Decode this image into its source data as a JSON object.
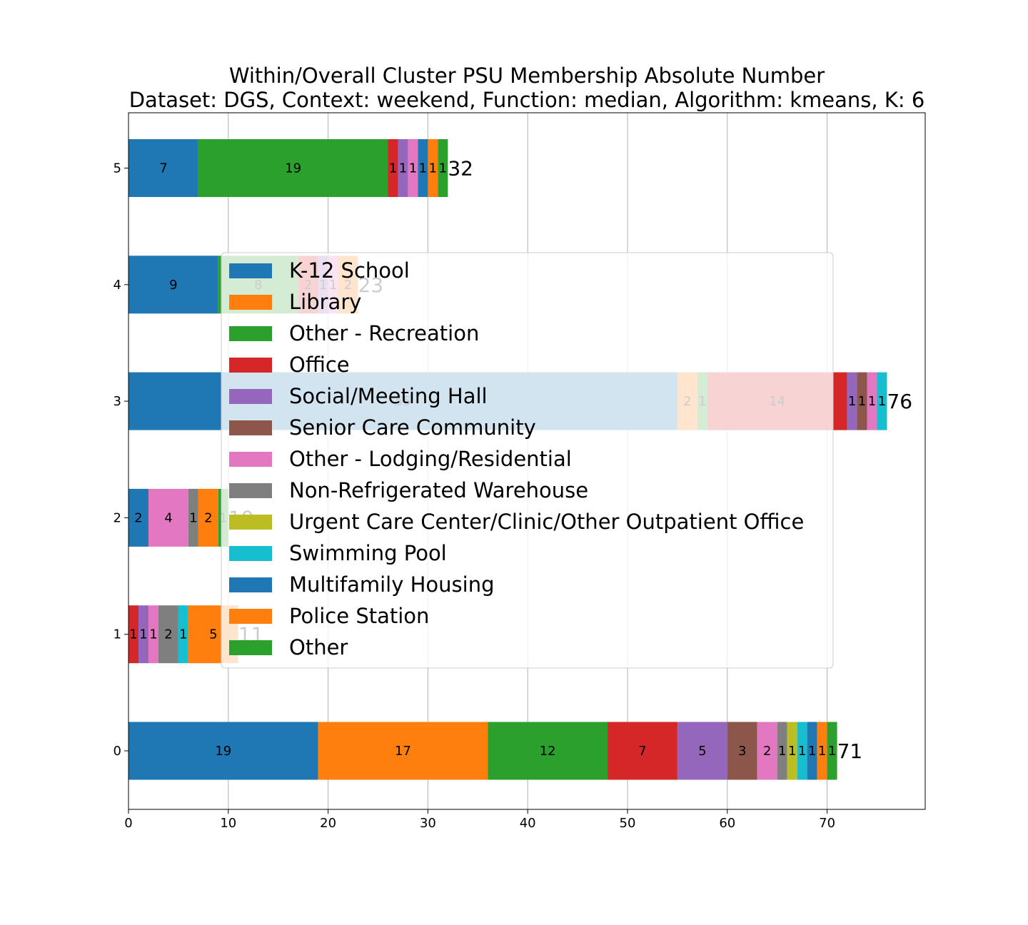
{
  "chart_data": {
    "type": "bar",
    "orientation": "horizontal",
    "stacked": true,
    "title": "Within/Overall Cluster PSU Membership Absolute Number",
    "subtitle": "Dataset: DGS, Context: weekend, Function: median, Algorithm: kmeans, K: 6",
    "xlabel": "",
    "ylabel": "",
    "xlim": [
      0,
      79.8
    ],
    "x_ticks": [
      "0",
      "10",
      "20",
      "30",
      "40",
      "50",
      "60",
      "70"
    ],
    "grid": true,
    "legend_placement": "center",
    "legend": [
      {
        "name": "K-12 School",
        "color": "#1f77b4"
      },
      {
        "name": "Library",
        "color": "#ff7f0e"
      },
      {
        "name": "Other - Recreation",
        "color": "#2ca02c"
      },
      {
        "name": "Office",
        "color": "#d62728"
      },
      {
        "name": "Social/Meeting Hall",
        "color": "#9467bd"
      },
      {
        "name": "Senior Care Community",
        "color": "#8c564b"
      },
      {
        "name": "Other - Lodging/Residential",
        "color": "#e377c2"
      },
      {
        "name": "Non-Refrigerated Warehouse",
        "color": "#7f7f7f"
      },
      {
        "name": "Urgent Care Center/Clinic/Other Outpatient Office",
        "color": "#bcbd22"
      },
      {
        "name": "Swimming Pool",
        "color": "#17becf"
      },
      {
        "name": "Multifamily Housing",
        "color": "#1f77b4"
      },
      {
        "name": "Police Station",
        "color": "#ff7f0e"
      },
      {
        "name": "Other",
        "color": "#2ca02c"
      }
    ],
    "clusters": [
      {
        "label": "0",
        "total": 71,
        "total_label": "71",
        "segments": [
          {
            "value": 19,
            "color": "#1f77b4",
            "label": "19"
          },
          {
            "value": 17,
            "color": "#ff7f0e",
            "label": "17"
          },
          {
            "value": 12,
            "color": "#2ca02c",
            "label": "12"
          },
          {
            "value": 7,
            "color": "#d62728",
            "label": "7"
          },
          {
            "value": 5,
            "color": "#9467bd",
            "label": "5"
          },
          {
            "value": 3,
            "color": "#8c564b",
            "label": "3"
          },
          {
            "value": 2,
            "color": "#e377c2",
            "label": "2"
          },
          {
            "value": 1,
            "color": "#7f7f7f",
            "label": "1"
          },
          {
            "value": 1,
            "color": "#bcbd22",
            "label": "1"
          },
          {
            "value": 1,
            "color": "#17becf",
            "label": "1"
          },
          {
            "value": 1,
            "color": "#1f77b4",
            "label": "1"
          },
          {
            "value": 1,
            "color": "#ff7f0e",
            "label": "1"
          },
          {
            "value": 1,
            "color": "#2ca02c",
            "label": "1"
          }
        ]
      },
      {
        "label": "1",
        "total": 11,
        "total_label": "11",
        "segments": [
          {
            "value": 1,
            "color": "#d62728",
            "label": "1"
          },
          {
            "value": 1,
            "color": "#9467bd",
            "label": "1"
          },
          {
            "value": 1,
            "color": "#e377c2",
            "label": "1"
          },
          {
            "value": 2,
            "color": "#7f7f7f",
            "label": "2"
          },
          {
            "value": 1,
            "color": "#17becf",
            "label": "1"
          },
          {
            "value": 5,
            "color": "#ff7f0e",
            "label": "5"
          }
        ]
      },
      {
        "label": "2",
        "total": 10,
        "total_label": "10",
        "segments": [
          {
            "value": 2,
            "color": "#1f77b4",
            "label": "2"
          },
          {
            "value": 4,
            "color": "#e377c2",
            "label": "4"
          },
          {
            "value": 1,
            "color": "#7f7f7f",
            "label": "1"
          },
          {
            "value": 2,
            "color": "#ff7f0e",
            "label": "2"
          },
          {
            "value": 1,
            "color": "#2ca02c",
            "label": "1"
          }
        ]
      },
      {
        "label": "3",
        "total": 76,
        "total_label": "76",
        "segments": [
          {
            "value": 55,
            "color": "#1f77b4",
            "label": "55"
          },
          {
            "value": 2,
            "color": "#ff7f0e",
            "label": "2"
          },
          {
            "value": 1,
            "color": "#2ca02c",
            "label": "1"
          },
          {
            "value": 14,
            "color": "#d62728",
            "label": "14"
          },
          {
            "value": 1,
            "color": "#9467bd",
            "label": "1"
          },
          {
            "value": 1,
            "color": "#8c564b",
            "label": "1"
          },
          {
            "value": 1,
            "color": "#e377c2",
            "label": "1"
          },
          {
            "value": 1,
            "color": "#17becf",
            "label": "1"
          }
        ]
      },
      {
        "label": "4",
        "total": 23,
        "total_label": "23",
        "segments": [
          {
            "value": 9,
            "color": "#1f77b4",
            "label": "9"
          },
          {
            "value": 8,
            "color": "#2ca02c",
            "label": "8"
          },
          {
            "value": 2,
            "color": "#d62728",
            "label": "2"
          },
          {
            "value": 1,
            "color": "#9467bd",
            "label": "1"
          },
          {
            "value": 1,
            "color": "#e377c2",
            "label": "1"
          },
          {
            "value": 2,
            "color": "#ff7f0e",
            "label": "2"
          }
        ]
      },
      {
        "label": "5",
        "total": 32,
        "total_label": "32",
        "segments": [
          {
            "value": 7,
            "color": "#1f77b4",
            "label": "7"
          },
          {
            "value": 19,
            "color": "#2ca02c",
            "label": "19"
          },
          {
            "value": 1,
            "color": "#d62728",
            "label": "1"
          },
          {
            "value": 1,
            "color": "#9467bd",
            "label": "1"
          },
          {
            "value": 1,
            "color": "#e377c2",
            "label": "1"
          },
          {
            "value": 1,
            "color": "#1f77b4",
            "label": "1"
          },
          {
            "value": 1,
            "color": "#ff7f0e",
            "label": "1"
          },
          {
            "value": 1,
            "color": "#2ca02c",
            "label": "1"
          }
        ]
      }
    ]
  }
}
